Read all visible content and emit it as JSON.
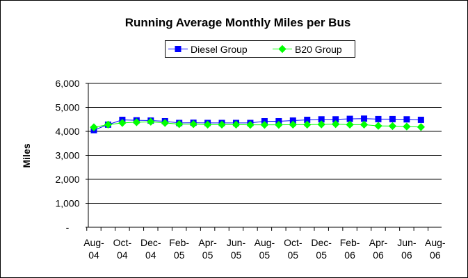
{
  "chart_data": {
    "type": "line",
    "title": "Running Average Monthly Miles per Bus",
    "y_label": "Miles",
    "categories": [
      "Aug-04",
      null,
      "Oct-04",
      null,
      "Dec-04",
      null,
      "Feb-05",
      null,
      "Apr-05",
      null,
      "Jun-05",
      null,
      "Aug-05",
      null,
      "Oct-05",
      null,
      "Dec-05",
      null,
      "Feb-06",
      null,
      "Apr-06",
      null,
      "Jun-06",
      null,
      "Aug-06"
    ],
    "series": [
      {
        "name": "Diesel Group",
        "color": "#0000ff",
        "marker": "square",
        "values": [
          4050,
          4280,
          4480,
          4460,
          4450,
          4420,
          4350,
          4360,
          4350,
          4350,
          4350,
          4350,
          4420,
          4420,
          4450,
          4480,
          4500,
          4500,
          4520,
          4530,
          4510,
          4510,
          4500,
          4480,
          null
        ]
      },
      {
        "name": "B20 Group",
        "color": "#00ff00",
        "marker": "diamond",
        "values": [
          4170,
          4280,
          4350,
          4380,
          4400,
          4350,
          4300,
          4300,
          4280,
          4280,
          4280,
          4270,
          4270,
          4270,
          4280,
          4280,
          4290,
          4300,
          4280,
          4280,
          4230,
          4220,
          4200,
          4180,
          null
        ]
      }
    ],
    "ylim": [
      0,
      6000
    ],
    "yticks": [
      {
        "value": 0,
        "label": "-"
      },
      {
        "value": 1000,
        "label": "1,000"
      },
      {
        "value": 2000,
        "label": "2,000"
      },
      {
        "value": 3000,
        "label": "3,000"
      },
      {
        "value": 4000,
        "label": "4,000"
      },
      {
        "value": 5000,
        "label": "5,000"
      },
      {
        "value": 6000,
        "label": "6,000"
      }
    ],
    "grid": true,
    "legend": "top"
  }
}
